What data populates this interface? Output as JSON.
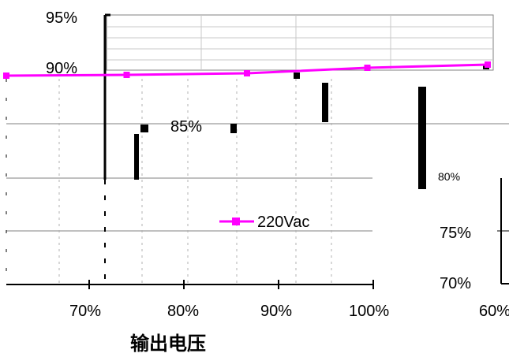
{
  "chart_data": {
    "type": "line",
    "title": "",
    "xlabel": "输出电压",
    "ylabel": "",
    "x_ticks": [
      "70%",
      "80%",
      "90%",
      "100%"
    ],
    "x_tick_values": [
      70,
      80,
      90,
      100
    ],
    "xlim": [
      60,
      100
    ],
    "y_ticks_main": [
      "95%",
      "90%",
      "85%"
    ],
    "y_ticks_inset": [
      "80%",
      "75%",
      "70%"
    ],
    "inset_x_tick": "60%",
    "ylim": [
      70,
      95
    ],
    "grid": true,
    "legend_position": "center",
    "series": [
      {
        "name": "220Vac",
        "color": "#ff00ff",
        "x": [
          60,
          70,
          80,
          90,
          100
        ],
        "y": [
          90.5,
          90.6,
          90.8,
          91.5,
          91.9
        ]
      }
    ]
  }
}
